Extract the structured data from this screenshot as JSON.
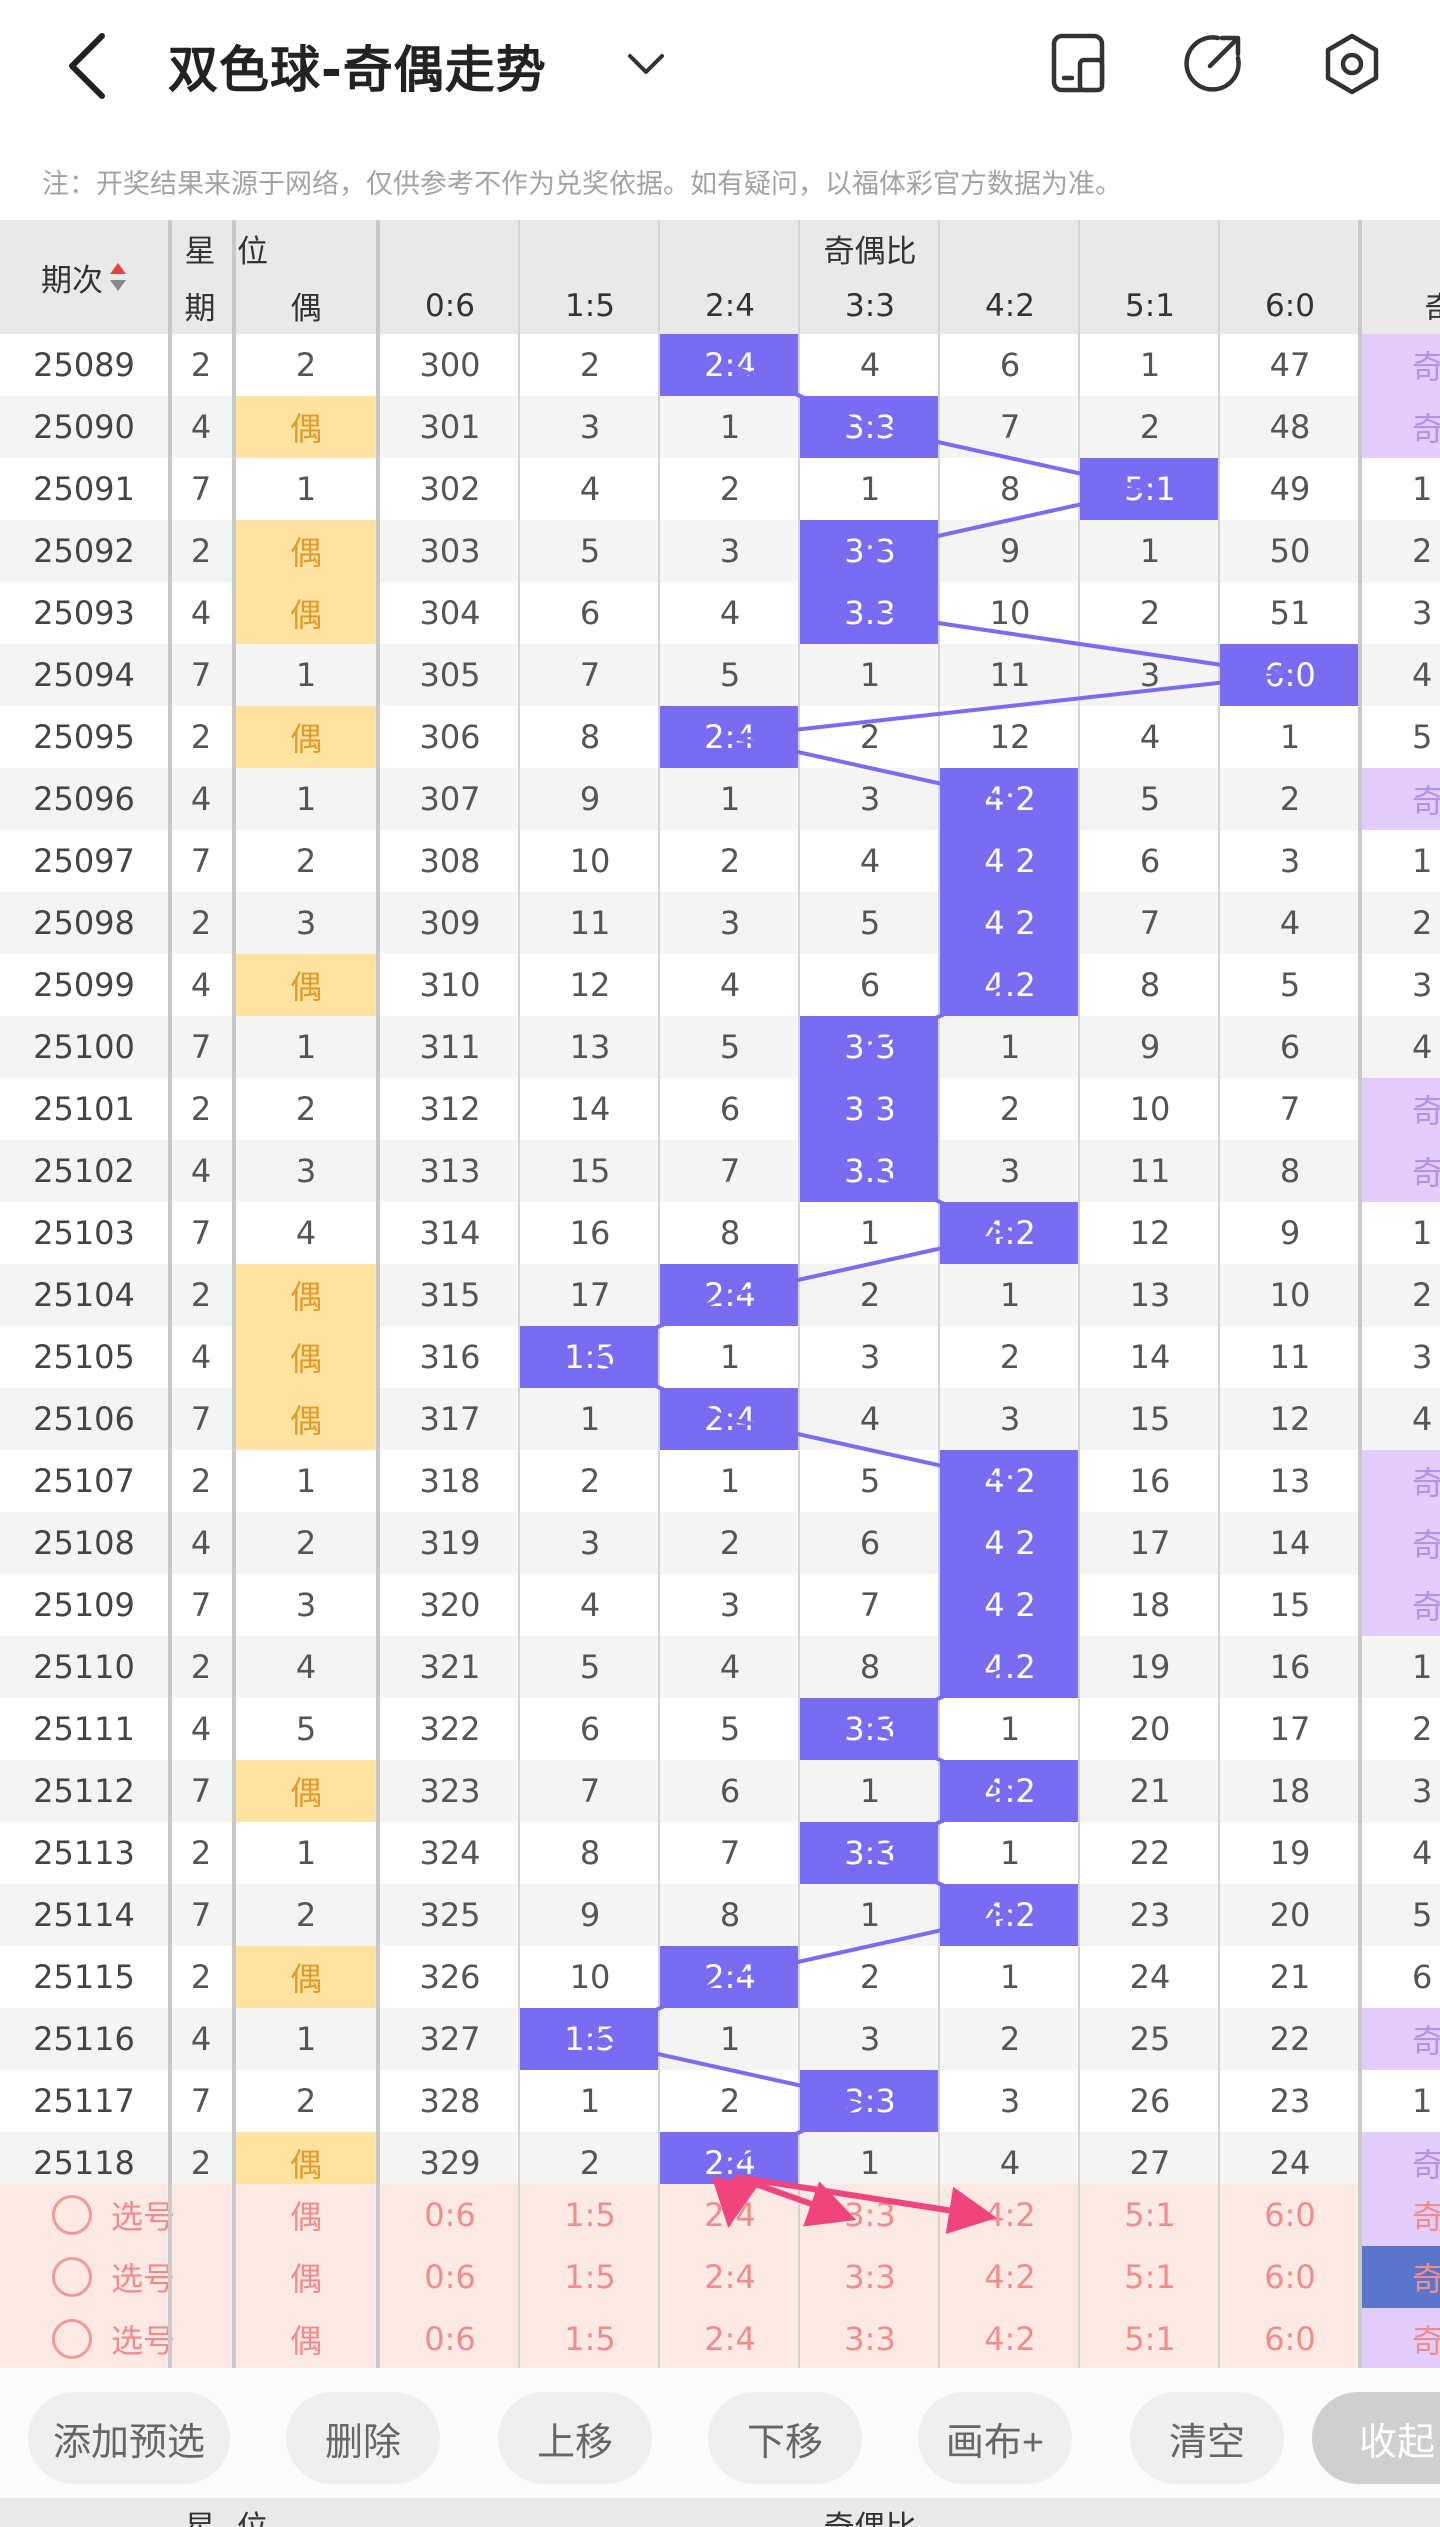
{
  "header": {
    "title": "双色球-奇偶走势"
  },
  "notice": "注：开奖结果来源于网络，仅供参考不作为兑奖依据。如有疑问，以福体彩官方数据为准。",
  "table": {
    "col_period": "期次",
    "col_week": [
      "星",
      "期"
    ],
    "col_pos_top": "个位",
    "col_pos": "偶",
    "ratio_group": "奇偶比",
    "ratio_cols": [
      "0:6",
      "1:5",
      "2:4",
      "3:3",
      "4:2",
      "5:1",
      "6:0"
    ],
    "extra_col": "奇",
    "rows": [
      {
        "period": "25089",
        "week": "2",
        "pos": "2",
        "ratios": [
          "300",
          "2",
          "2:4",
          "4",
          "6",
          "1",
          "47"
        ],
        "hit": 2,
        "extra": "奇"
      },
      {
        "period": "25090",
        "week": "4",
        "pos": "偶",
        "ratios": [
          "301",
          "3",
          "1",
          "3:3",
          "7",
          "2",
          "48"
        ],
        "hit": 3,
        "extra": "奇"
      },
      {
        "period": "25091",
        "week": "7",
        "pos": "1",
        "ratios": [
          "302",
          "4",
          "2",
          "1",
          "8",
          "5:1",
          "49"
        ],
        "hit": 5,
        "extra": "1"
      },
      {
        "period": "25092",
        "week": "2",
        "pos": "偶",
        "ratios": [
          "303",
          "5",
          "3",
          "3:3",
          "9",
          "1",
          "50"
        ],
        "hit": 3,
        "extra": "2"
      },
      {
        "period": "25093",
        "week": "4",
        "pos": "偶",
        "ratios": [
          "304",
          "6",
          "4",
          "3:3",
          "10",
          "2",
          "51"
        ],
        "hit": 3,
        "extra": "3"
      },
      {
        "period": "25094",
        "week": "7",
        "pos": "1",
        "ratios": [
          "305",
          "7",
          "5",
          "1",
          "11",
          "3",
          "6:0"
        ],
        "hit": 6,
        "extra": "4"
      },
      {
        "period": "25095",
        "week": "2",
        "pos": "偶",
        "ratios": [
          "306",
          "8",
          "2:4",
          "2",
          "12",
          "4",
          "1"
        ],
        "hit": 2,
        "extra": "5"
      },
      {
        "period": "25096",
        "week": "4",
        "pos": "1",
        "ratios": [
          "307",
          "9",
          "1",
          "3",
          "4:2",
          "5",
          "2"
        ],
        "hit": 4,
        "extra": "奇"
      },
      {
        "period": "25097",
        "week": "7",
        "pos": "2",
        "ratios": [
          "308",
          "10",
          "2",
          "4",
          "4:2",
          "6",
          "3"
        ],
        "hit": 4,
        "extra": "1"
      },
      {
        "period": "25098",
        "week": "2",
        "pos": "3",
        "ratios": [
          "309",
          "11",
          "3",
          "5",
          "4:2",
          "7",
          "4"
        ],
        "hit": 4,
        "extra": "2"
      },
      {
        "period": "25099",
        "week": "4",
        "pos": "偶",
        "ratios": [
          "310",
          "12",
          "4",
          "6",
          "4:2",
          "8",
          "5"
        ],
        "hit": 4,
        "extra": "3"
      },
      {
        "period": "25100",
        "week": "7",
        "pos": "1",
        "ratios": [
          "311",
          "13",
          "5",
          "3:3",
          "1",
          "9",
          "6"
        ],
        "hit": 3,
        "extra": "4"
      },
      {
        "period": "25101",
        "week": "2",
        "pos": "2",
        "ratios": [
          "312",
          "14",
          "6",
          "3:3",
          "2",
          "10",
          "7"
        ],
        "hit": 3,
        "extra": "奇"
      },
      {
        "period": "25102",
        "week": "4",
        "pos": "3",
        "ratios": [
          "313",
          "15",
          "7",
          "3:3",
          "3",
          "11",
          "8"
        ],
        "hit": 3,
        "extra": "奇"
      },
      {
        "period": "25103",
        "week": "7",
        "pos": "4",
        "ratios": [
          "314",
          "16",
          "8",
          "1",
          "4:2",
          "12",
          "9"
        ],
        "hit": 4,
        "extra": "1"
      },
      {
        "period": "25104",
        "week": "2",
        "pos": "偶",
        "ratios": [
          "315",
          "17",
          "2:4",
          "2",
          "1",
          "13",
          "10"
        ],
        "hit": 2,
        "extra": "2"
      },
      {
        "period": "25105",
        "week": "4",
        "pos": "偶",
        "ratios": [
          "316",
          "1:5",
          "1",
          "3",
          "2",
          "14",
          "11"
        ],
        "hit": 1,
        "extra": "3"
      },
      {
        "period": "25106",
        "week": "7",
        "pos": "偶",
        "ratios": [
          "317",
          "1",
          "2:4",
          "4",
          "3",
          "15",
          "12"
        ],
        "hit": 2,
        "extra": "4"
      },
      {
        "period": "25107",
        "week": "2",
        "pos": "1",
        "ratios": [
          "318",
          "2",
          "1",
          "5",
          "4:2",
          "16",
          "13"
        ],
        "hit": 4,
        "extra": "奇"
      },
      {
        "period": "25108",
        "week": "4",
        "pos": "2",
        "ratios": [
          "319",
          "3",
          "2",
          "6",
          "4:2",
          "17",
          "14"
        ],
        "hit": 4,
        "extra": "奇"
      },
      {
        "period": "25109",
        "week": "7",
        "pos": "3",
        "ratios": [
          "320",
          "4",
          "3",
          "7",
          "4:2",
          "18",
          "15"
        ],
        "hit": 4,
        "extra": "奇"
      },
      {
        "period": "25110",
        "week": "2",
        "pos": "4",
        "ratios": [
          "321",
          "5",
          "4",
          "8",
          "4:2",
          "19",
          "16"
        ],
        "hit": 4,
        "extra": "1"
      },
      {
        "period": "25111",
        "week": "4",
        "pos": "5",
        "ratios": [
          "322",
          "6",
          "5",
          "3:3",
          "1",
          "20",
          "17"
        ],
        "hit": 3,
        "extra": "2"
      },
      {
        "period": "25112",
        "week": "7",
        "pos": "偶",
        "ratios": [
          "323",
          "7",
          "6",
          "1",
          "4:2",
          "21",
          "18"
        ],
        "hit": 4,
        "extra": "3"
      },
      {
        "period": "25113",
        "week": "2",
        "pos": "1",
        "ratios": [
          "324",
          "8",
          "7",
          "3:3",
          "1",
          "22",
          "19"
        ],
        "hit": 3,
        "extra": "4"
      },
      {
        "period": "25114",
        "week": "7",
        "pos": "2",
        "ratios": [
          "325",
          "9",
          "8",
          "1",
          "4:2",
          "23",
          "20"
        ],
        "hit": 4,
        "extra": "5"
      },
      {
        "period": "25115",
        "week": "2",
        "pos": "偶",
        "ratios": [
          "326",
          "10",
          "2:4",
          "2",
          "1",
          "24",
          "21"
        ],
        "hit": 2,
        "extra": "6"
      },
      {
        "period": "25116",
        "week": "4",
        "pos": "1",
        "ratios": [
          "327",
          "1:5",
          "1",
          "3",
          "2",
          "25",
          "22"
        ],
        "hit": 1,
        "extra": "奇"
      },
      {
        "period": "25117",
        "week": "7",
        "pos": "2",
        "ratios": [
          "328",
          "1",
          "2",
          "3:3",
          "3",
          "26",
          "23"
        ],
        "hit": 3,
        "extra": "1"
      },
      {
        "period": "25118",
        "week": "2",
        "pos": "偶",
        "ratios": [
          "329",
          "2",
          "2:4",
          "1",
          "4",
          "27",
          "24"
        ],
        "hit": 2,
        "extra": "奇"
      }
    ],
    "select_rows": [
      {
        "label": "选号",
        "pos": "偶",
        "ratios": [
          "0:6",
          "1:5",
          "2:4",
          "3:3",
          "4:2",
          "5:1",
          "6:0"
        ],
        "extra": "奇"
      },
      {
        "label": "选号",
        "pos": "偶",
        "ratios": [
          "0:6",
          "1:5",
          "2:4",
          "3:3",
          "4:2",
          "5:1",
          "6:0"
        ],
        "extra": "奇"
      },
      {
        "label": "选号",
        "pos": "偶",
        "ratios": [
          "0:6",
          "1:5",
          "2:4",
          "3:3",
          "4:2",
          "5:1",
          "6:0"
        ],
        "extra": "奇"
      }
    ]
  },
  "toolbar": {
    "add": "添加预选",
    "delete": "删除",
    "up": "上移",
    "down": "下移",
    "canvas": "画布+",
    "clear": "清空",
    "collapse": "收起"
  },
  "bottom_header": {
    "week_top": "星",
    "pos_top": "个位",
    "group": "奇偶比"
  },
  "colors": {
    "hit": "#786cf3",
    "even": "#ffe3a0",
    "odd_extra": "#e2cdfc",
    "select_bg": "#fde9e4",
    "arrow": "#f0457c"
  }
}
